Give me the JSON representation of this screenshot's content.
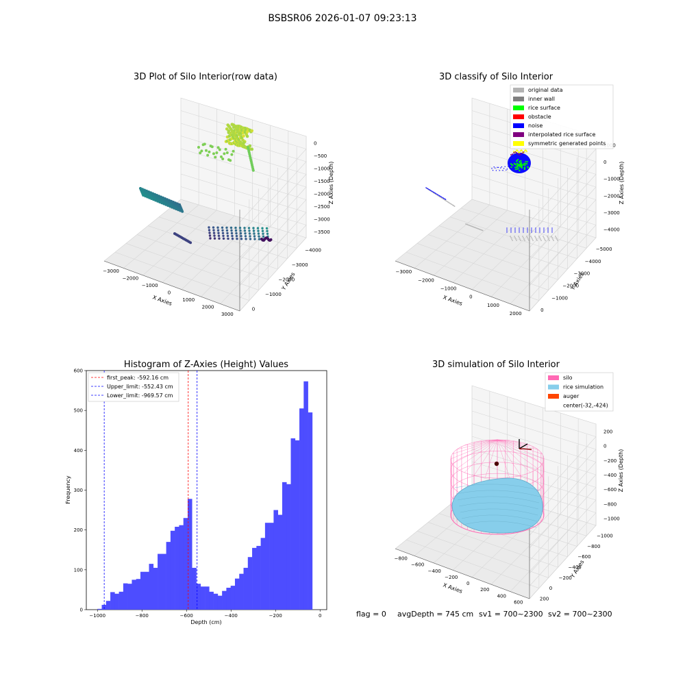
{
  "suptitle": "BSBSR06 2026-01-07 09:23:13",
  "footer": {
    "flag": "flag = 0",
    "avg": "avgDepth = 745 cm",
    "sv1": "sv1 = 700~2300",
    "sv2": "sv2 = 700~2300"
  },
  "colors": {
    "hist_bar": "#4d4dff",
    "peak_line": "#ff0000",
    "limit_line": "#0000ff",
    "silo": "#ff69b4",
    "rice": "#87ceeb",
    "auger": "#ff4500"
  },
  "chart_data": [
    {
      "type": "scatter",
      "title": "3D Plot of Silo Interior(row data)",
      "xlabel": "X Axies",
      "ylabel": "Y Axies",
      "zlabel": "Z Axies (Depth)",
      "x_ticks": [
        "−3000",
        "−2000",
        "−1000",
        "0",
        "1000",
        "2000",
        "3000"
      ],
      "y_ticks": [
        "0",
        "−1000",
        "−2000",
        "−3000",
        "−4000"
      ],
      "z_ticks": [
        "0",
        "−500",
        "−1000",
        "−1500",
        "−2000",
        "−2500",
        "−3000",
        "−3500"
      ],
      "colormap": "viridis",
      "grid": true
    },
    {
      "type": "scatter",
      "title": "3D classify of Silo Interior",
      "xlabel": "X Axies",
      "ylabel": "Y Axies",
      "zlabel": "Z Axies (Depth)",
      "x_ticks": [
        "−3000",
        "−2000",
        "−1000",
        "0",
        "1000",
        "2000"
      ],
      "y_ticks": [
        "0",
        "−1000",
        "−2000",
        "−3000",
        "−4000",
        "−5000"
      ],
      "z_ticks": [
        "1000",
        "0",
        "−1000",
        "−2000",
        "−3000",
        "−4000"
      ],
      "legend_position": "top-right",
      "legend": [
        {
          "label": "original data",
          "color": "#b3b3b3"
        },
        {
          "label": "inner wall",
          "color": "#808080"
        },
        {
          "label": "rice surface",
          "color": "#00ff00"
        },
        {
          "label": "obstacle",
          "color": "#ff0000"
        },
        {
          "label": "noise",
          "color": "#0000ff"
        },
        {
          "label": "interpolated rice surface",
          "color": "#800080"
        },
        {
          "label": "symmetric generated points",
          "color": "#ffff00"
        }
      ]
    },
    {
      "type": "bar",
      "title": "Histogram of Z-Axies (Height) Values",
      "xlabel": "Depth (cm)",
      "ylabel": "Frequency",
      "xlim": [
        -1050,
        30
      ],
      "ylim": [
        0,
        600
      ],
      "x_ticks": [
        -1000,
        -800,
        -600,
        -400,
        -200,
        0
      ],
      "x_tick_labels": [
        "−1000",
        "−800",
        "−600",
        "−400",
        "−200",
        "0"
      ],
      "y_ticks": [
        0,
        100,
        200,
        300,
        400,
        500,
        600
      ],
      "bin_start": -1000,
      "bin_width": 19.3,
      "values": [
        2,
        12,
        22,
        44,
        40,
        45,
        66,
        65,
        75,
        77,
        95,
        95,
        115,
        105,
        140,
        140,
        170,
        198,
        208,
        212,
        230,
        278,
        105,
        65,
        58,
        58,
        45,
        40,
        35,
        47,
        55,
        60,
        78,
        90,
        105,
        132,
        155,
        160,
        180,
        218,
        218,
        250,
        238,
        320,
        315,
        430,
        425,
        505,
        573,
        495
      ],
      "lines": [
        {
          "label": "first_peak: -592.16 cm",
          "x": -592.16,
          "color": "#ff0000"
        },
        {
          "label": "Upper_limit: -552.43 cm",
          "x": -552.43,
          "color": "#0000ff"
        },
        {
          "label": "Lower_limit: -969.57 cm",
          "x": -969.57,
          "color": "#0000ff"
        }
      ],
      "legend_position": "top-left"
    },
    {
      "type": "area",
      "title": "3D simulation of Silo Interior",
      "xlabel": "X Axies",
      "ylabel": "Y Axies",
      "zlabel": "Z Axies (Depth)",
      "x_ticks": [
        "−800",
        "−600",
        "−400",
        "−200",
        "0",
        "200",
        "400",
        "600"
      ],
      "y_ticks": [
        "200",
        "0",
        "−200",
        "−400",
        "−600",
        "−800",
        "−1000"
      ],
      "z_ticks": [
        "200",
        "0",
        "−200",
        "−400",
        "−600",
        "−800",
        "−1000"
      ],
      "legend_position": "top-right",
      "legend": [
        {
          "label": "silo",
          "color": "#ff69b4"
        },
        {
          "label": "rice simulation",
          "color": "#87ceeb"
        },
        {
          "label": "auger",
          "color": "#ff4500"
        },
        {
          "label": "center(-32,-424)",
          "color": ""
        }
      ]
    }
  ]
}
